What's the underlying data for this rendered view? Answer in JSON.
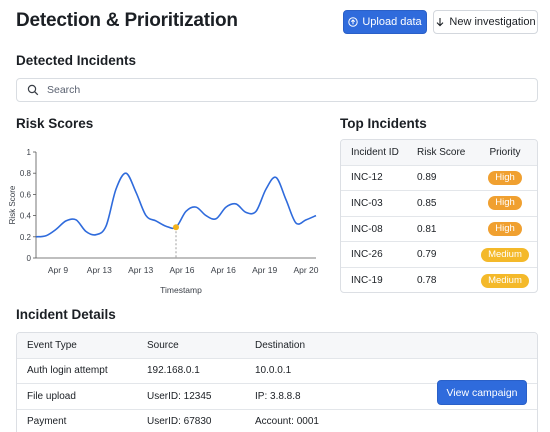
{
  "header": {
    "title": "Detection & Prioritization",
    "upload_label": "Upload data",
    "new_investigation_label": "New investigation"
  },
  "detected": {
    "title": "Detected Incidents",
    "search_placeholder": "Search"
  },
  "risk": {
    "title": "Risk Scores"
  },
  "chart_data": {
    "type": "line",
    "xlabel": "Timestamp",
    "ylabel": "Risk Score",
    "ylim": [
      0,
      1
    ],
    "y_ticks": [
      "0",
      "0.2",
      "0.4",
      "0.6",
      "0.8",
      "1"
    ],
    "x_tick_labels": [
      "Apr 9",
      "Apr 13",
      "Apr 13",
      "Apr 16",
      "Apr 16",
      "Apr 19",
      "Apr 20"
    ],
    "grid": false,
    "line_color": "#2f6bdc",
    "highlight_color": "#f2b21b",
    "highlight_index": 14,
    "series": [
      {
        "x": [
          0,
          0.25,
          0.5,
          0.75,
          1.0,
          1.25,
          1.5,
          1.75,
          2.0,
          2.25,
          2.5,
          2.75,
          3.0,
          3.25,
          3.5,
          3.75,
          4.0,
          4.25,
          4.5,
          4.75,
          5.0,
          5.25,
          5.5,
          5.75,
          6.0,
          6.25,
          6.5,
          6.75,
          7.0
        ],
        "values": [
          0.2,
          0.21,
          0.27,
          0.35,
          0.36,
          0.25,
          0.22,
          0.3,
          0.65,
          0.8,
          0.62,
          0.4,
          0.35,
          0.3,
          0.29,
          0.44,
          0.48,
          0.4,
          0.37,
          0.48,
          0.51,
          0.43,
          0.44,
          0.65,
          0.76,
          0.55,
          0.33,
          0.36,
          0.4
        ]
      }
    ]
  },
  "top_incidents": {
    "title": "Top Incidents",
    "columns": [
      "Incident ID",
      "Risk Score",
      "Priority"
    ],
    "rows": [
      {
        "id": "INC-12",
        "score": "0.89",
        "priority": "High"
      },
      {
        "id": "INC-03",
        "score": "0.85",
        "priority": "High"
      },
      {
        "id": "INC-08",
        "score": "0.81",
        "priority": "High"
      },
      {
        "id": "INC-26",
        "score": "0.79",
        "priority": "Medium"
      },
      {
        "id": "INC-19",
        "score": "0.78",
        "priority": "Medium"
      }
    ],
    "priority_colors": {
      "High": "#f0a030",
      "Medium": "#f4b92a"
    }
  },
  "details": {
    "title": "Incident Details",
    "columns": [
      "Event Type",
      "Source",
      "Destination"
    ],
    "rows": [
      {
        "event": "Auth login attempt",
        "source": "192.168.0.1",
        "dest": "10.0.0.1"
      },
      {
        "event": "File upload",
        "source": "UserID: 12345",
        "dest": "IP: 3.8.8.8"
      },
      {
        "event": "Payment",
        "source": "UserID: 67830",
        "dest": "Account: 0001"
      }
    ],
    "campaign_label": "View campaign"
  }
}
